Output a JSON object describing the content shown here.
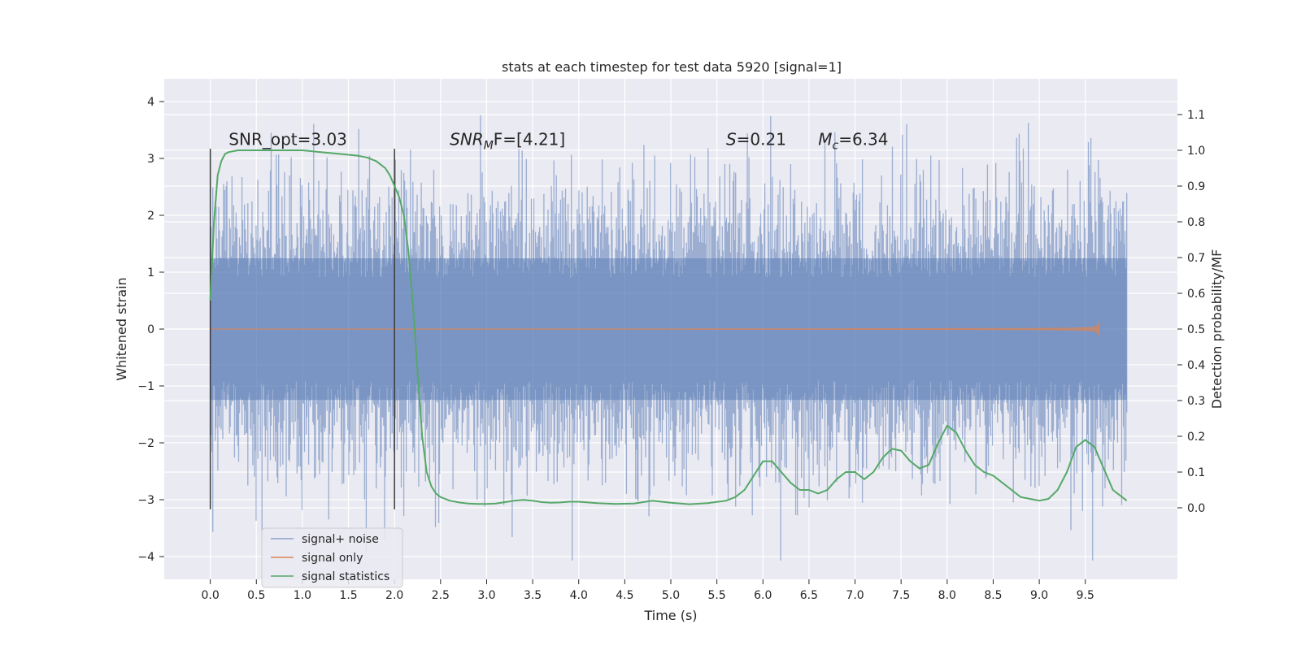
{
  "chart_data": {
    "type": "line",
    "title": "stats at each timestep for test data 5920 [signal=1]",
    "xlabel": "Time (s)",
    "ylabel": "Whitened strain",
    "y2label": "Detection probability/MF",
    "xlim": [
      -0.5,
      10.5
    ],
    "ylim": [
      -4.4,
      4.4
    ],
    "y2lim": [
      -0.2,
      1.2
    ],
    "x_ticks": [
      "0.0",
      "0.5",
      "1.0",
      "1.5",
      "2.0",
      "2.5",
      "3.0",
      "3.5",
      "4.0",
      "4.5",
      "5.0",
      "5.5",
      "6.0",
      "6.5",
      "7.0",
      "7.5",
      "8.0",
      "8.5",
      "9.0",
      "9.5"
    ],
    "y_ticks": [
      "4",
      "3",
      "2",
      "1",
      "0",
      "−1",
      "−2",
      "−3",
      "−4"
    ],
    "y2_ticks": [
      "1.1",
      "1.0",
      "0.9",
      "0.8",
      "0.7",
      "0.6",
      "0.5",
      "0.4",
      "0.3",
      "0.2",
      "0.1",
      "0.0"
    ],
    "grid": true,
    "legend_position": "lower-left",
    "colors": {
      "background": "#eaeaf2",
      "noise": "#4c72b0",
      "signal": "#dd8452",
      "stats": "#55a868",
      "vline": "#3a3a3a"
    },
    "annotations": [
      {
        "text": "SNR_opt=3.03",
        "x": 0.2,
        "y2": 1.015,
        "italic": false
      },
      {
        "text_main": "SNR",
        "text_sub": "M",
        "text_rest": "F=[4.21]",
        "x": 2.6,
        "y2": 1.015,
        "italic": true
      },
      {
        "text_main": "S",
        "text_rest": "=0.21",
        "x": 5.6,
        "y2": 1.015,
        "italic": true
      },
      {
        "text_main": "M",
        "text_sub": "c",
        "text_rest": "=6.34",
        "x": 6.6,
        "y2": 1.015,
        "italic": true
      }
    ],
    "vlines": [
      {
        "x": 0.0,
        "y_from": -3.17,
        "y_to": 3.17
      },
      {
        "x": 2.0,
        "y_from": -3.17,
        "y_to": 3.17
      }
    ],
    "series": [
      {
        "name": "signal+ noise",
        "kind": "noise_band",
        "axis": "left",
        "x_range": [
          0.0,
          9.95
        ],
        "typical_amplitude": 1.2,
        "max": 4.05,
        "min": -4.07
      },
      {
        "name": "signal only",
        "kind": "chirp",
        "axis": "left",
        "x_range": [
          0.0,
          9.65
        ],
        "peak_amplitude": 0.45
      },
      {
        "name": "signal statistics",
        "kind": "line",
        "axis": "right",
        "x": [
          0.0,
          0.04,
          0.08,
          0.12,
          0.16,
          0.2,
          0.3,
          0.5,
          0.8,
          1.0,
          1.2,
          1.4,
          1.6,
          1.7,
          1.8,
          1.85,
          1.9,
          1.95,
          2.0,
          2.05,
          2.1,
          2.15,
          2.2,
          2.25,
          2.3,
          2.35,
          2.4,
          2.45,
          2.5,
          2.55,
          2.6,
          2.7,
          2.8,
          2.9,
          3.0,
          3.1,
          3.2,
          3.3,
          3.4,
          3.5,
          3.6,
          3.7,
          3.8,
          3.9,
          4.0,
          4.2,
          4.4,
          4.6,
          4.8,
          5.0,
          5.2,
          5.4,
          5.6,
          5.7,
          5.8,
          5.9,
          6.0,
          6.1,
          6.2,
          6.3,
          6.4,
          6.5,
          6.6,
          6.7,
          6.8,
          6.9,
          7.0,
          7.1,
          7.2,
          7.3,
          7.4,
          7.5,
          7.6,
          7.7,
          7.8,
          7.9,
          8.0,
          8.1,
          8.2,
          8.3,
          8.4,
          8.5,
          8.6,
          8.7,
          8.8,
          8.9,
          9.0,
          9.1,
          9.2,
          9.3,
          9.4,
          9.5,
          9.6,
          9.7,
          9.8,
          9.95
        ],
        "y": [
          0.58,
          0.8,
          0.93,
          0.97,
          0.99,
          0.995,
          1.0,
          1.0,
          1.0,
          1.0,
          0.995,
          0.99,
          0.985,
          0.98,
          0.97,
          0.96,
          0.95,
          0.93,
          0.9,
          0.87,
          0.82,
          0.72,
          0.57,
          0.38,
          0.2,
          0.1,
          0.06,
          0.04,
          0.03,
          0.025,
          0.02,
          0.015,
          0.012,
          0.011,
          0.011,
          0.012,
          0.016,
          0.02,
          0.022,
          0.02,
          0.016,
          0.014,
          0.015,
          0.017,
          0.017,
          0.013,
          0.011,
          0.012,
          0.02,
          0.014,
          0.01,
          0.013,
          0.02,
          0.03,
          0.05,
          0.09,
          0.13,
          0.13,
          0.1,
          0.07,
          0.05,
          0.05,
          0.04,
          0.05,
          0.08,
          0.1,
          0.1,
          0.08,
          0.1,
          0.14,
          0.165,
          0.16,
          0.13,
          0.11,
          0.12,
          0.18,
          0.23,
          0.21,
          0.16,
          0.12,
          0.1,
          0.09,
          0.07,
          0.05,
          0.03,
          0.025,
          0.02,
          0.025,
          0.05,
          0.1,
          0.17,
          0.19,
          0.17,
          0.11,
          0.05,
          0.02
        ]
      }
    ]
  },
  "legend": {
    "items": [
      {
        "label": "signal+ noise",
        "color": "#4c72b0"
      },
      {
        "label": "signal only",
        "color": "#dd8452"
      },
      {
        "label": "signal statistics",
        "color": "#55a868"
      }
    ]
  }
}
